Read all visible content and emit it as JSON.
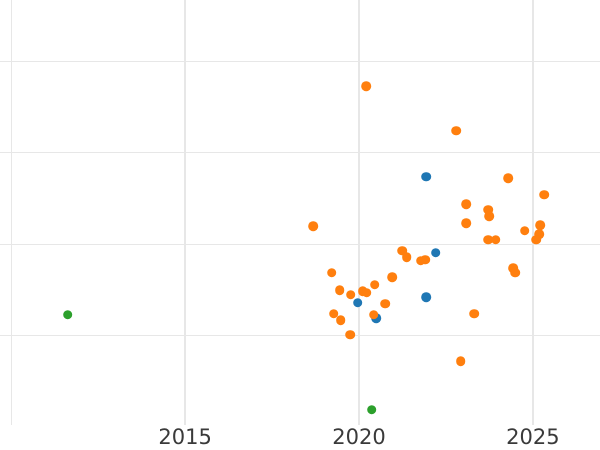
{
  "figure": {
    "background_color": "#ffffff",
    "gridline_color": "#e7e7e7",
    "tick_label_color": "#3a3a3a"
  },
  "chart_data": {
    "type": "scatter",
    "title": "",
    "xlabel": "",
    "ylabel": "",
    "grid": true,
    "legend_position": "none",
    "xlim": [
      2009.675,
      2026.93
    ],
    "ylim": [
      0.03,
      4.67
    ],
    "x_gridlines": [
      2010,
      2015,
      2020,
      2025
    ],
    "y_gridlines": [
      1,
      2,
      3,
      4
    ],
    "x_ticks": [
      {
        "value": 2015,
        "label": "2015"
      },
      {
        "value": 2020,
        "label": "2020"
      },
      {
        "value": 2025,
        "label": "2025"
      }
    ],
    "y_ticks": [],
    "note": "y-axis tick labels not visible in image (cropped); y values given in unlabeled gridline units",
    "marker_diameter_px": 9.6,
    "series": [
      {
        "name": "blue",
        "color": "#1f77b4",
        "points": [
          [
            2021.93,
            2.74
          ],
          [
            2022.2,
            1.91
          ],
          [
            2021.94,
            1.42
          ],
          [
            2019.96,
            1.36
          ],
          [
            2020.5,
            1.19
          ]
        ]
      },
      {
        "name": "orange",
        "color": "#ff7f0e",
        "points": [
          [
            2020.2,
            3.73
          ],
          [
            2022.79,
            3.24
          ],
          [
            2024.29,
            2.72
          ],
          [
            2025.33,
            2.54
          ],
          [
            2018.68,
            2.2
          ],
          [
            2023.09,
            2.44
          ],
          [
            2023.08,
            2.23
          ],
          [
            2023.72,
            2.38
          ],
          [
            2023.75,
            2.31
          ],
          [
            2023.72,
            2.05
          ],
          [
            2023.93,
            2.05
          ],
          [
            2024.77,
            2.15
          ],
          [
            2025.21,
            2.21
          ],
          [
            2025.19,
            2.11
          ],
          [
            2025.09,
            2.05
          ],
          [
            2019.21,
            1.69
          ],
          [
            2020.95,
            1.64
          ],
          [
            2020.45,
            1.56
          ],
          [
            2019.45,
            1.5
          ],
          [
            2019.76,
            1.45
          ],
          [
            2020.1,
            1.49
          ],
          [
            2020.22,
            1.47
          ],
          [
            2021.25,
            1.93
          ],
          [
            2021.37,
            1.86
          ],
          [
            2021.77,
            1.82
          ],
          [
            2021.9,
            1.83
          ],
          [
            2024.44,
            1.74
          ],
          [
            2024.49,
            1.69
          ],
          [
            2023.32,
            1.24
          ],
          [
            2019.27,
            1.24
          ],
          [
            2019.47,
            1.17
          ],
          [
            2019.74,
            1.01
          ],
          [
            2020.42,
            1.23
          ],
          [
            2020.75,
            1.35
          ],
          [
            2022.92,
            0.72
          ]
        ]
      },
      {
        "name": "green",
        "color": "#2ca02c",
        "points": [
          [
            2011.62,
            1.23
          ],
          [
            2020.37,
            0.19
          ]
        ]
      }
    ]
  }
}
